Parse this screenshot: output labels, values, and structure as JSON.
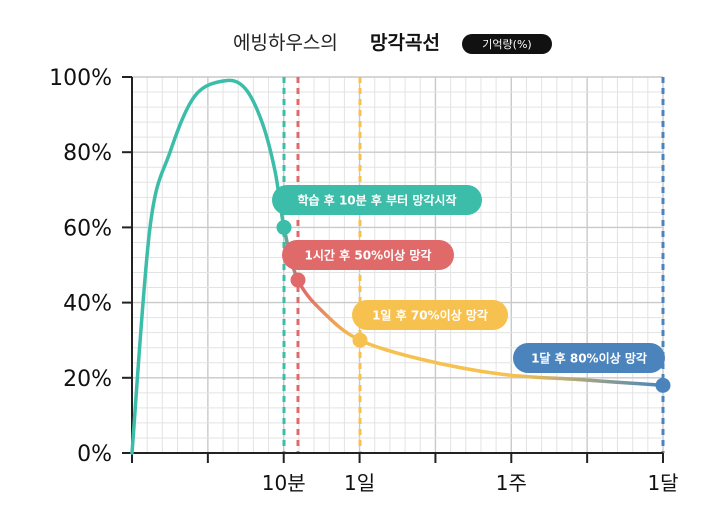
{
  "title": {
    "light": "에빙하우스의",
    "bold": "망각곡선",
    "badge": "기억량(%)"
  },
  "chart_data": {
    "type": "line",
    "title": "에빙하우스의 망각곡선",
    "ylabel": "기억량(%)",
    "ylim": [
      0,
      100
    ],
    "y_ticks": [
      "0%",
      "20%",
      "40%",
      "60%",
      "80%",
      "100%"
    ],
    "x_ticks": [
      "10분",
      "1일",
      "1주",
      "1달"
    ],
    "grid": true,
    "colors": {
      "teal": "#3bbda9",
      "red": "#e06a6a",
      "yellow": "#f6c14e",
      "blue": "#4b84bd"
    },
    "curve_points_y": [
      0,
      60,
      80,
      95,
      99,
      97,
      88,
      75,
      60,
      46,
      37,
      30,
      25,
      21,
      19.5,
      18
    ],
    "markers": [
      {
        "label": "10분",
        "y": 60,
        "color": "#3bbda9",
        "annotation": "학습 후 10분 후 부터 망각시작"
      },
      {
        "label": "1시간",
        "y": 46,
        "color": "#e06a6a",
        "annotation": "1시간 후 50%이상 망각"
      },
      {
        "label": "1일",
        "y": 30,
        "color": "#f6c14e",
        "annotation": "1일 후 70%이상 망각"
      },
      {
        "label": "1달",
        "y": 18,
        "color": "#4b84bd",
        "annotation": "1달 후 80%이상 망각"
      }
    ]
  }
}
